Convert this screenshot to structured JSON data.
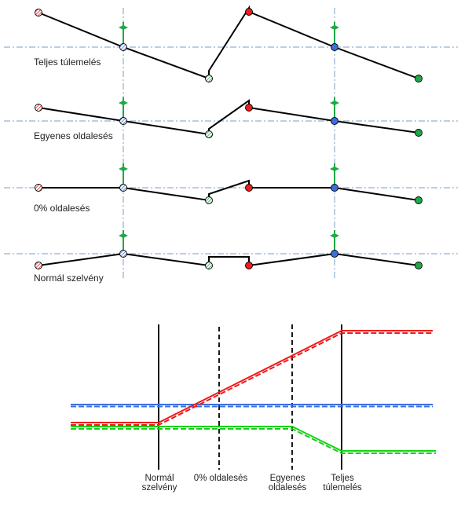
{
  "sections": [
    {
      "label": "Teljes túlemelés"
    },
    {
      "label": "Egyenes oldalesés"
    },
    {
      "label": "0% oldalesés"
    },
    {
      "label": "Normál szelvény"
    }
  ],
  "axis_labels": [
    {
      "line1": "Normál",
      "line2": "szelvény"
    },
    {
      "line1": "0% oldalesés",
      "line2": ""
    },
    {
      "line1": "Egyenes",
      "line2": "oldalesés"
    },
    {
      "line1": "Teljes",
      "line2": "túlemelés"
    }
  ],
  "colors": {
    "red": "#ee1c1c",
    "blue": "#3a6fe0",
    "green": "#12d312",
    "marker_green": "#1fa846",
    "axis": "#7a9cc6",
    "line": "#000000"
  }
}
